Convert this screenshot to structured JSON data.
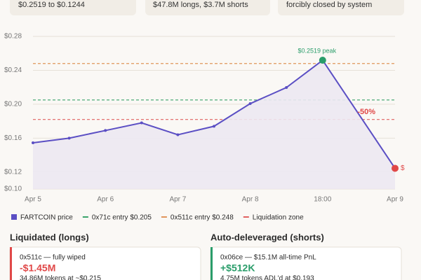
{
  "cards_top": [
    "$0.2519 to $0.1244",
    "$47.8M longs, $3.7M shorts",
    "forcibly closed by system"
  ],
  "chart_data": {
    "type": "line",
    "x": [
      0,
      0.5,
      1,
      1.5,
      2,
      2.5,
      3,
      3.5,
      4,
      5
    ],
    "series": [
      {
        "name": "FARTCOIN price",
        "color": "#5b4fc4",
        "values": [
          0.1545,
          0.16,
          0.169,
          0.178,
          0.164,
          0.174,
          0.2007,
          0.2197,
          0.2519,
          0.1244
        ]
      }
    ],
    "reference_lines": [
      {
        "name": "0x71c entry $0.205",
        "value": 0.205,
        "color": "#3aa36a"
      },
      {
        "name": "0x511c entry $0.248",
        "value": 0.248,
        "color": "#e0955a"
      },
      {
        "name": "Liquidation zone",
        "value": 0.182,
        "color": "#e06060"
      }
    ],
    "annotations": [
      {
        "text": "$0.2519 peak",
        "color": "#2a9d6a"
      },
      {
        "text": "-50%",
        "color": "#e04848"
      },
      {
        "text": "$",
        "color": "#e04848"
      }
    ],
    "xlim": [
      0,
      5
    ],
    "xticks": [
      {
        "value": 0,
        "label": "Apr 5"
      },
      {
        "value": 1,
        "label": "Apr 6"
      },
      {
        "value": 2,
        "label": "Apr 7"
      },
      {
        "value": 3,
        "label": "Apr 8"
      },
      {
        "value": 4,
        "label": "18:00"
      },
      {
        "value": 5,
        "label": "Apr 9"
      }
    ],
    "ylim": [
      0.1,
      0.28
    ],
    "yticks": [
      {
        "value": 0.1,
        "label": "$0.10"
      },
      {
        "value": 0.12,
        "label": "$0.12"
      },
      {
        "value": 0.16,
        "label": "$0.16"
      },
      {
        "value": 0.2,
        "label": "$0.20"
      },
      {
        "value": 0.24,
        "label": "$0.24"
      },
      {
        "value": 0.28,
        "label": "$0.28"
      }
    ],
    "grid": true
  },
  "sections": [
    {
      "title": "Liquidated (longs)",
      "color": "#e04848",
      "line1": "0x511c — fully wiped",
      "amount": "-$1.45M",
      "line3": "34.86M tokens at ~$0.215"
    },
    {
      "title": "Auto-deleveraged (shorts)",
      "color": "#2a9d6a",
      "line1": "0x06ce — $15.1M all-time PnL",
      "amount": "+$512K",
      "line3": "4.75M tokens ADL'd at $0.193"
    }
  ]
}
